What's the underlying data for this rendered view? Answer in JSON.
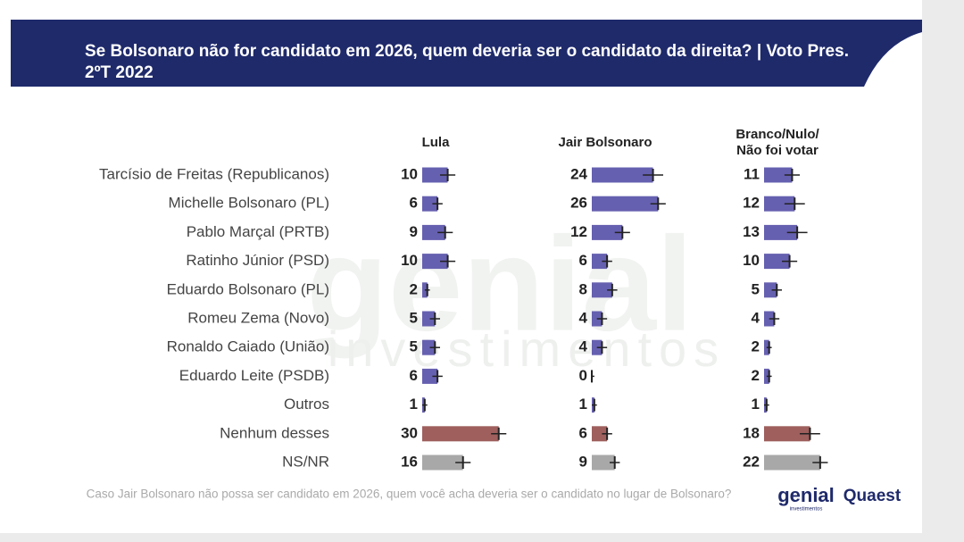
{
  "chart_data": {
    "type": "bar",
    "title": "Se Bolsonaro não for candidato em 2026, quem deveria ser o candidato da direita? | Voto Pres. 2ºT 2022",
    "note": "Caso Jair Bolsonaro não possa ser candidato em 2026, quem você acha deveria ser o candidato no lugar de Bolsonaro?",
    "categories": [
      "Tarcísio de Freitas (Republicanos)",
      "Michelle Bolsonaro (PL)",
      "Pablo Marçal (PRTB)",
      "Ratinho Júnior (PSD)",
      "Eduardo Bolsonaro (PL)",
      "Romeu Zema (Novo)",
      "Ronaldo Caiado (União)",
      "Eduardo Leite (PSDB)",
      "Outros",
      "Nenhum desses",
      "NS/NR"
    ],
    "bar_colors": [
      "#6660b0",
      "#6660b0",
      "#6660b0",
      "#6660b0",
      "#6660b0",
      "#6660b0",
      "#6660b0",
      "#6660b0",
      "#6660b0",
      "#9e5f5d",
      "#a8a8a8"
    ],
    "xlim": [
      0,
      35
    ],
    "series": [
      {
        "name": "Lula",
        "values": [
          10,
          6,
          9,
          10,
          2,
          5,
          5,
          6,
          1,
          30,
          16
        ],
        "errors": [
          3,
          2,
          3,
          3,
          1,
          2,
          2,
          2,
          1,
          3,
          3
        ]
      },
      {
        "name": "Jair Bolsonaro",
        "values": [
          24,
          26,
          12,
          6,
          8,
          4,
          4,
          0,
          1,
          6,
          9
        ],
        "errors": [
          4,
          3,
          3,
          2,
          2,
          2,
          2,
          1,
          1,
          2,
          2
        ]
      },
      {
        "name": "Branco/Nulo/ Não foi votar",
        "values": [
          11,
          12,
          13,
          10,
          5,
          4,
          2,
          2,
          1,
          18,
          22
        ],
        "errors": [
          3,
          4,
          4,
          3,
          2,
          2,
          1,
          1,
          1,
          4,
          3
        ]
      }
    ]
  },
  "watermark": [
    "genial",
    "investimentos"
  ],
  "logos": [
    "genial",
    "investimentos",
    "Quaest"
  ]
}
